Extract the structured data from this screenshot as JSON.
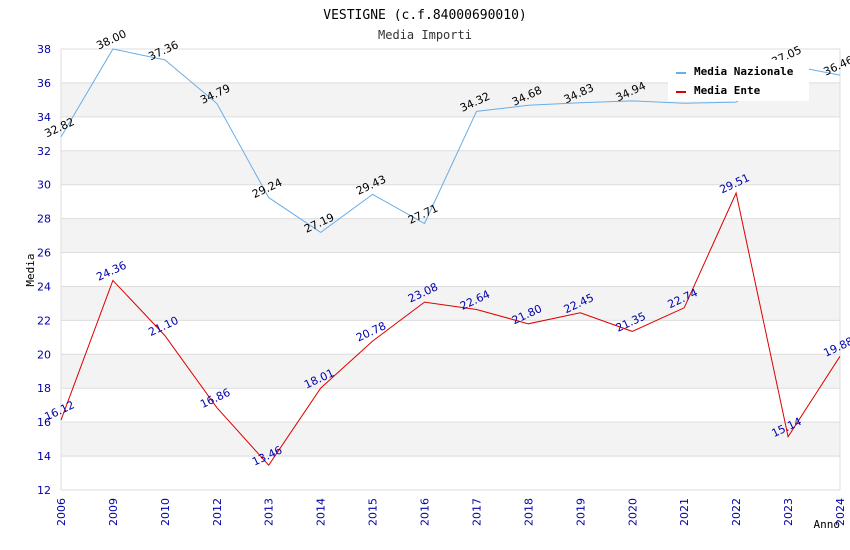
{
  "chart_data": {
    "type": "line",
    "title": "VESTIGNE (c.f.84000690010)",
    "subtitle": "Media Importi",
    "xlabel": "Anno",
    "ylabel": "Media",
    "ylim": [
      12,
      38
    ],
    "yticks": [
      "12",
      "14",
      "16",
      "18",
      "20",
      "22",
      "24",
      "26",
      "28",
      "30",
      "32",
      "34",
      "36",
      "38"
    ],
    "categories": [
      "2006",
      "2009",
      "2010",
      "2012",
      "2013",
      "2014",
      "2015",
      "2016",
      "2017",
      "2018",
      "2019",
      "2020",
      "2021",
      "2022",
      "2023",
      "2024"
    ],
    "grid": "horizontal bands",
    "legend_position": "top-right",
    "series": [
      {
        "name": "Media Nazionale",
        "color": "#6aaee6",
        "values": [
          32.82,
          38.0,
          37.36,
          34.79,
          29.24,
          27.19,
          29.43,
          27.71,
          34.32,
          34.68,
          34.83,
          34.94,
          34.8,
          34.87,
          37.05,
          36.46
        ],
        "labels": [
          "32.82",
          "38.00",
          "37.36",
          "34.79",
          "29.24",
          "27.19",
          "29.43",
          "27.71",
          "34.32",
          "34.68",
          "34.83",
          "34.94",
          "",
          "",
          "37.05",
          "36.46"
        ]
      },
      {
        "name": "Media Ente",
        "color": "#dd0000",
        "values": [
          16.12,
          24.36,
          21.1,
          16.86,
          13.46,
          18.01,
          20.78,
          23.08,
          22.64,
          21.8,
          22.45,
          21.35,
          22.74,
          29.51,
          15.14,
          19.88
        ],
        "labels": [
          "16.12",
          "24.36",
          "21.10",
          "16.86",
          "13.46",
          "18.01",
          "20.78",
          "23.08",
          "22.64",
          "21.80",
          "22.45",
          "21.35",
          "22.74",
          "29.51",
          "15.14",
          "19.88"
        ]
      }
    ]
  }
}
